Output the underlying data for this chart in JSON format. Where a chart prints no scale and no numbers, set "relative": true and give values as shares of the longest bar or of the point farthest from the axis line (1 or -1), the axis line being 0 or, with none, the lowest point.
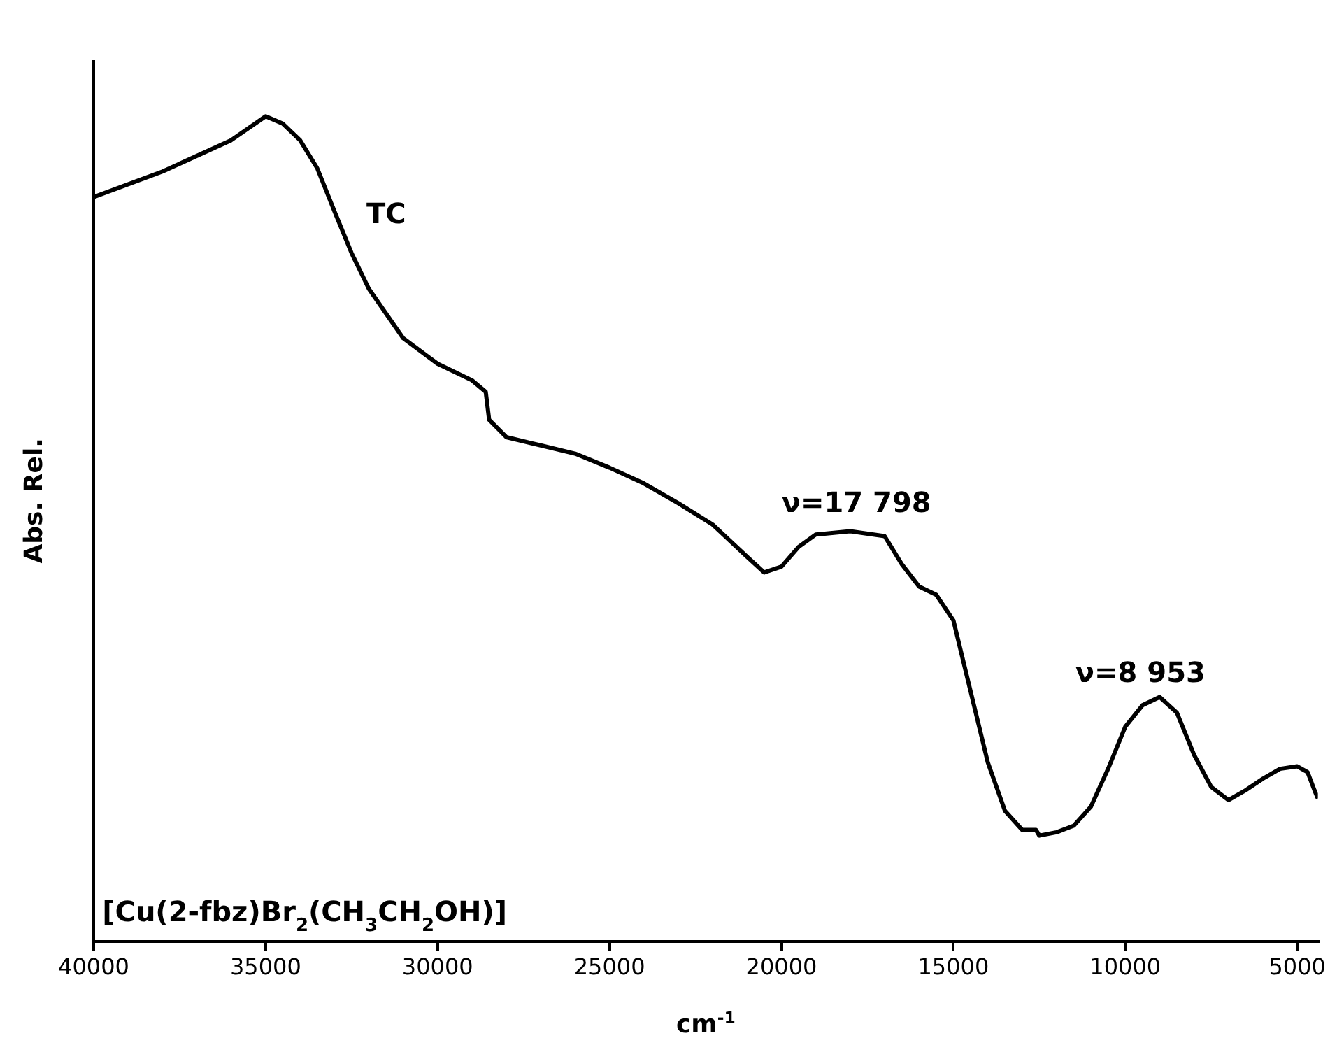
{
  "chart_data": {
    "type": "line",
    "relative": true,
    "xlabel": "cm$^{-1}$",
    "ylabel": "Abs. Rel.",
    "xlim": [
      40000,
      4400
    ],
    "xticks": [
      40000,
      35000,
      30000,
      25000,
      20000,
      15000,
      10000,
      5000
    ],
    "x": [
      40000,
      38000,
      36000,
      35000,
      34500,
      34000,
      33500,
      33000,
      32500,
      32000,
      31000,
      30000,
      29000,
      28600,
      28500,
      28000,
      27000,
      26000,
      25000,
      24000,
      23000,
      22000,
      21000,
      20500,
      20000,
      19500,
      19000,
      18000,
      17000,
      16500,
      16000,
      15500,
      15000,
      14500,
      14000,
      13500,
      13000,
      12600,
      12500,
      12000,
      11500,
      11000,
      10500,
      10000,
      9500,
      9000,
      8500,
      8000,
      7500,
      7000,
      6500,
      6000,
      5500,
      5000,
      4700,
      4500,
      4400
    ],
    "series": [
      {
        "color": "#000000",
        "values": [
          0.902,
          0.933,
          0.971,
          1.0,
          0.991,
          0.971,
          0.937,
          0.885,
          0.834,
          0.791,
          0.731,
          0.7,
          0.68,
          0.666,
          0.632,
          0.611,
          0.601,
          0.591,
          0.574,
          0.555,
          0.531,
          0.505,
          0.466,
          0.447,
          0.454,
          0.478,
          0.493,
          0.497,
          0.491,
          0.457,
          0.43,
          0.42,
          0.389,
          0.303,
          0.217,
          0.158,
          0.135,
          0.135,
          0.128,
          0.132,
          0.14,
          0.163,
          0.209,
          0.26,
          0.286,
          0.296,
          0.277,
          0.226,
          0.187,
          0.171,
          0.183,
          0.197,
          0.209,
          0.212,
          0.205,
          0.183,
          0.173
        ]
      }
    ],
    "annotations": [
      "TC",
      "ν=17 798",
      "ν=8 953",
      "[Cu(2-fbz)Br$_{2}$(CH$_{3}$CH$_{2}$OH)]"
    ],
    "grid": false,
    "legend": false,
    "marker": "none",
    "line_style": "solid"
  }
}
